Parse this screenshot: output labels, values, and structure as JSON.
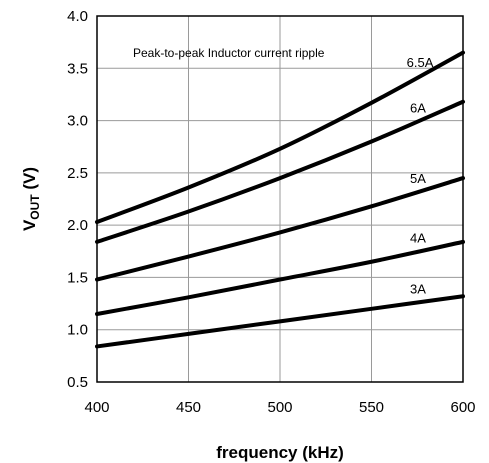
{
  "chart_data": {
    "type": "line",
    "title": "",
    "xlabel": "frequency (kHz)",
    "ylabel": {
      "main": "V",
      "sub": "OUT",
      "unit": " (V)"
    },
    "xlim": [
      400,
      600
    ],
    "ylim": [
      0.5,
      4.0
    ],
    "xticks": [
      "400",
      "450",
      "500",
      "550",
      "600"
    ],
    "yticks": [
      "0.5",
      "1.0",
      "1.5",
      "2.0",
      "2.5",
      "3.0",
      "3.5",
      "4.0"
    ],
    "grid": true,
    "annotation": "Peak-to-peak Inductor current ripple",
    "x": [
      400,
      450,
      500,
      550,
      600
    ],
    "series": [
      {
        "name": "3A",
        "values": [
          0.84,
          0.96,
          1.08,
          1.2,
          1.32
        ]
      },
      {
        "name": "4A",
        "values": [
          1.15,
          1.31,
          1.48,
          1.65,
          1.84
        ]
      },
      {
        "name": "5A",
        "values": [
          1.48,
          1.7,
          1.93,
          2.18,
          2.45
        ]
      },
      {
        "name": "6A",
        "values": [
          1.84,
          2.13,
          2.45,
          2.8,
          3.18
        ]
      },
      {
        "name": "6.5A",
        "values": [
          2.03,
          2.36,
          2.73,
          3.17,
          3.65
        ]
      }
    ]
  }
}
